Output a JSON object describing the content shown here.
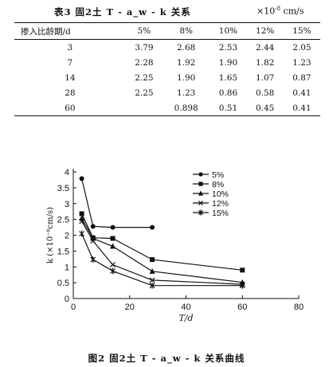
{
  "table": {
    "title": "表3  固2土 T - a_w - k 关系",
    "unit": "×10",
    "unit_exp": "-8",
    "unit_tail": "cm/s",
    "header_first": "掺入比龄期/d",
    "columns": [
      "5%",
      "8%",
      "10%",
      "12%",
      "15%"
    ],
    "rows": [
      {
        "age": "3",
        "values": [
          "3.79",
          "2.68",
          "2.53",
          "2.44",
          "2.05"
        ]
      },
      {
        "age": "7",
        "values": [
          "2.28",
          "1.92",
          "1.90",
          "1.82",
          "1.23"
        ]
      },
      {
        "age": "14",
        "values": [
          "2.25",
          "1.90",
          "1.65",
          "1.07",
          "0.87"
        ]
      },
      {
        "age": "28",
        "values": [
          "2.25",
          "1.23",
          "0.86",
          "0.58",
          "0.41"
        ]
      },
      {
        "age": "60",
        "values": [
          "",
          "0.898",
          "0.51",
          "0.45",
          "0.41"
        ]
      }
    ]
  },
  "figure": {
    "caption": "图2  固2土 T - a_w - k 关系曲线",
    "ylabel": "k (×10⁻⁸cm/s)",
    "xlabel": "T/d"
  },
  "chart_data": {
    "type": "line",
    "xlabel": "T/d",
    "ylabel": "k (×10⁻⁸cm/s)",
    "xlim": [
      0,
      80
    ],
    "ylim": [
      0,
      4
    ],
    "xticks": [
      0,
      20,
      40,
      60,
      80
    ],
    "yticks": [
      0,
      0.5,
      1,
      1.5,
      2,
      2.5,
      3,
      3.5,
      4
    ],
    "legend_position": "top-right",
    "series": [
      {
        "name": "5%",
        "marker": "circle",
        "points": [
          [
            3,
            3.79
          ],
          [
            7,
            2.28
          ],
          [
            14,
            2.25
          ],
          [
            28,
            2.25
          ]
        ]
      },
      {
        "name": "8%",
        "marker": "square",
        "points": [
          [
            3,
            2.68
          ],
          [
            7,
            1.92
          ],
          [
            14,
            1.9
          ],
          [
            28,
            1.23
          ],
          [
            60,
            0.898
          ]
        ]
      },
      {
        "name": "10%",
        "marker": "triangle",
        "points": [
          [
            3,
            2.53
          ],
          [
            7,
            1.9
          ],
          [
            14,
            1.65
          ],
          [
            28,
            0.86
          ],
          [
            60,
            0.51
          ]
        ]
      },
      {
        "name": "12%",
        "marker": "x",
        "points": [
          [
            3,
            2.44
          ],
          [
            7,
            1.82
          ],
          [
            14,
            1.07
          ],
          [
            28,
            0.58
          ],
          [
            60,
            0.45
          ]
        ]
      },
      {
        "name": "15%",
        "marker": "star",
        "points": [
          [
            3,
            2.05
          ],
          [
            7,
            1.23
          ],
          [
            14,
            0.87
          ],
          [
            28,
            0.41
          ],
          [
            60,
            0.41
          ]
        ]
      }
    ]
  }
}
